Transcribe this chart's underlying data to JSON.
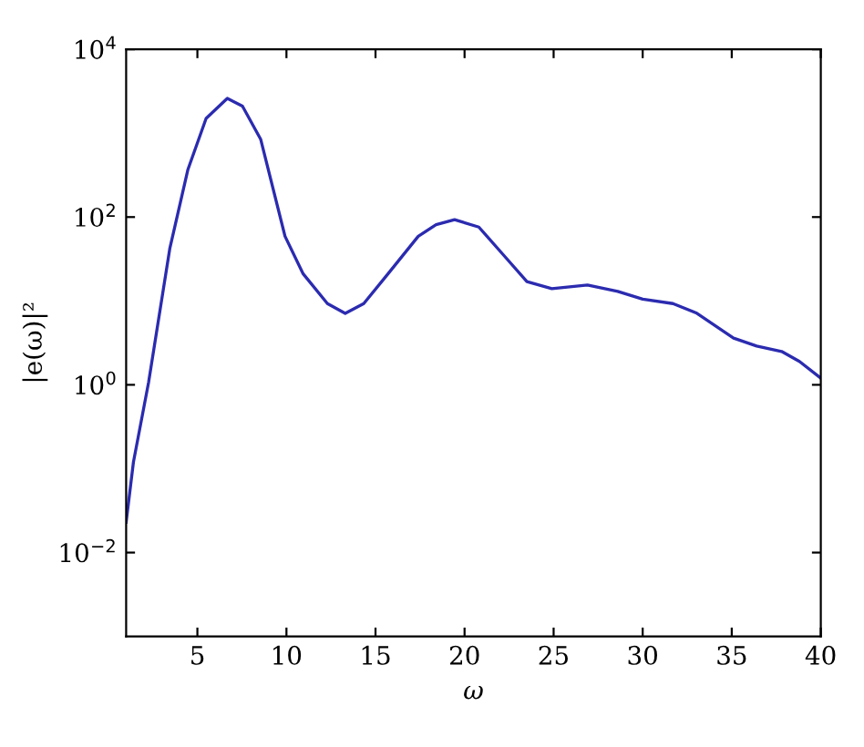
{
  "chart_data": {
    "type": "line",
    "xlabel": "ω",
    "ylabel": "|e(ω)|²",
    "log": "y",
    "grid": false,
    "marker": "none",
    "line_style": "solid",
    "xlim": [
      1,
      40
    ],
    "xticks": [
      5,
      10,
      15,
      20,
      25,
      30,
      35,
      40
    ],
    "ylim": [
      0.001,
      10000
    ],
    "yticks": [
      {
        "value": 0.01,
        "label": "10$^{−2}$"
      },
      {
        "value": 1,
        "label": "10$^{0}$"
      },
      {
        "value": 100,
        "label": "10$^{2}$"
      },
      {
        "value": 10000,
        "label": "10$^{4}$"
      }
    ],
    "series": [
      {
        "color": "#2b2bb0",
        "x": [
          1,
          1.41,
          2.26,
          3.45,
          4.47,
          5.49,
          6.68,
          7.53,
          8.55,
          9.92,
          10.94,
          12.3,
          13.3,
          14.34,
          15.7,
          17.4,
          18.4,
          19.44,
          20.8,
          22.2,
          23.5,
          24.9,
          26.9,
          28.6,
          30,
          31.7,
          33,
          35.1,
          36.4,
          37.8,
          38.8,
          40
        ],
        "values": [
          0.023,
          0.12,
          1.07,
          42,
          370,
          1500,
          2600,
          2100,
          850,
          59,
          21,
          9.3,
          7.1,
          9.3,
          21,
          59,
          81,
          93,
          76,
          35,
          17,
          14,
          15.5,
          13,
          10.5,
          9.3,
          7.2,
          3.6,
          2.9,
          2.5,
          1.9,
          1.2
        ]
      }
    ]
  }
}
